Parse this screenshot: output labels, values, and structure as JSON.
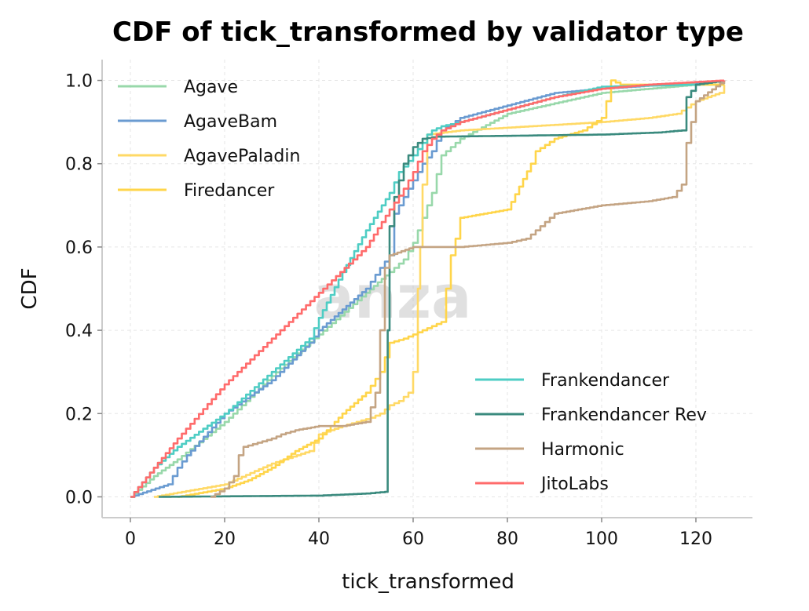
{
  "chart_data": {
    "type": "line",
    "title": "CDF of tick_transformed by validator type",
    "xlabel": "tick_transformed",
    "ylabel": "CDF",
    "xlim": [
      -6,
      132
    ],
    "ylim": [
      -0.05,
      1.05
    ],
    "xticks": [
      0,
      20,
      40,
      60,
      80,
      100,
      120
    ],
    "yticks": [
      0.0,
      0.2,
      0.4,
      0.6,
      0.8,
      1.0
    ],
    "grid": true,
    "watermark": "anza",
    "legend_placement": [
      "upper-left",
      "lower-right"
    ],
    "series": [
      {
        "name": "Agave",
        "color": "#98d8aa",
        "legend": "upper-left",
        "x": [
          0,
          5,
          10,
          20,
          30,
          40,
          50,
          55,
          58,
          60,
          62,
          64,
          66,
          70,
          80,
          100,
          120,
          126
        ],
        "y": [
          0.0,
          0.05,
          0.09,
          0.18,
          0.29,
          0.39,
          0.49,
          0.54,
          0.57,
          0.61,
          0.67,
          0.73,
          0.82,
          0.86,
          0.92,
          0.97,
          0.99,
          0.99
        ]
      },
      {
        "name": "AgaveBam",
        "color": "#6a9bd1",
        "legend": "upper-left",
        "x": [
          0,
          8,
          10,
          12,
          20,
          30,
          38,
          40,
          45,
          50,
          53,
          55,
          56,
          58,
          60,
          62,
          64,
          66,
          70,
          80,
          90,
          100,
          120,
          126
        ],
        "y": [
          0.0,
          0.03,
          0.07,
          0.1,
          0.2,
          0.28,
          0.37,
          0.4,
          0.45,
          0.5,
          0.55,
          0.58,
          0.68,
          0.72,
          0.76,
          0.8,
          0.83,
          0.88,
          0.91,
          0.94,
          0.97,
          0.98,
          0.995,
          1.0
        ]
      },
      {
        "name": "AgavePaladin",
        "color": "#ffd966",
        "legend": "upper-left",
        "x": [
          5,
          10,
          20,
          30,
          38,
          40,
          45,
          48,
          51,
          53,
          55,
          57,
          59,
          60,
          61,
          61.5,
          62,
          63,
          70,
          100,
          110,
          116,
          120,
          125,
          126
        ],
        "y": [
          0.0,
          0.01,
          0.03,
          0.08,
          0.11,
          0.15,
          0.17,
          0.18,
          0.19,
          0.2,
          0.22,
          0.23,
          0.25,
          0.3,
          0.5,
          0.6,
          0.75,
          0.87,
          0.88,
          0.9,
          0.91,
          0.92,
          0.95,
          0.97,
          0.99
        ]
      },
      {
        "name": "Firedancer",
        "color": "#ffd54a",
        "legend": "upper-left",
        "x": [
          10,
          20,
          25,
          30,
          35,
          40,
          45,
          50,
          53,
          55,
          58,
          62,
          66,
          68,
          69,
          70,
          75,
          80,
          85,
          86,
          90,
          96,
          100,
          101,
          102,
          104,
          110,
          126
        ],
        "y": [
          0.0,
          0.02,
          0.04,
          0.07,
          0.11,
          0.14,
          0.2,
          0.25,
          0.3,
          0.37,
          0.38,
          0.4,
          0.42,
          0.58,
          0.62,
          0.67,
          0.68,
          0.69,
          0.8,
          0.83,
          0.86,
          0.88,
          0.91,
          0.95,
          1.0,
          0.99,
          0.99,
          0.99
        ]
      },
      {
        "name": "Frankendancer",
        "color": "#4ecdc4",
        "legend": "lower-right",
        "x": [
          0,
          5,
          10,
          20,
          30,
          38,
          40,
          45,
          50,
          55,
          57,
          60,
          62,
          63,
          64,
          66,
          70,
          80,
          90,
          100,
          120,
          126
        ],
        "y": [
          0.0,
          0.07,
          0.12,
          0.2,
          0.3,
          0.38,
          0.43,
          0.54,
          0.64,
          0.73,
          0.78,
          0.82,
          0.85,
          0.87,
          0.88,
          0.89,
          0.9,
          0.93,
          0.96,
          0.985,
          0.99,
          1.0
        ]
      },
      {
        "name": "Frankendancer Rev",
        "color": "#3a8a7e",
        "legend": "lower-right",
        "x": [
          6,
          40,
          50,
          54,
          54.6,
          55,
          56,
          58,
          60,
          62,
          65,
          80,
          100,
          112,
          117,
          118,
          120,
          126
        ],
        "y": [
          0.0,
          0.003,
          0.008,
          0.012,
          0.4,
          0.65,
          0.72,
          0.8,
          0.84,
          0.86,
          0.865,
          0.867,
          0.87,
          0.875,
          0.88,
          0.96,
          0.99,
          1.0
        ]
      },
      {
        "name": "Harmonic",
        "color": "#c4a483",
        "legend": "lower-right",
        "x": [
          17,
          20,
          22,
          23,
          24,
          27,
          30,
          32,
          35,
          40,
          45,
          50,
          52,
          53,
          54,
          55,
          60,
          70,
          80,
          84,
          86,
          88,
          90,
          95,
          100,
          110,
          115,
          117,
          118,
          120,
          126
        ],
        "y": [
          0.0,
          0.02,
          0.05,
          0.1,
          0.12,
          0.13,
          0.14,
          0.15,
          0.16,
          0.17,
          0.17,
          0.18,
          0.25,
          0.4,
          0.55,
          0.58,
          0.6,
          0.6,
          0.61,
          0.62,
          0.64,
          0.66,
          0.68,
          0.69,
          0.7,
          0.71,
          0.72,
          0.75,
          0.85,
          0.95,
          1.0
        ]
      },
      {
        "name": "JitoLabs",
        "color": "#ff6b6b",
        "legend": "lower-right",
        "x": [
          0,
          5,
          10,
          20,
          30,
          40,
          50,
          55,
          58,
          60,
          62,
          64,
          66,
          70,
          80,
          90,
          100,
          110,
          126
        ],
        "y": [
          0.0,
          0.07,
          0.14,
          0.27,
          0.38,
          0.49,
          0.6,
          0.69,
          0.74,
          0.78,
          0.83,
          0.86,
          0.88,
          0.9,
          0.93,
          0.96,
          0.98,
          0.99,
          1.0
        ]
      }
    ]
  }
}
